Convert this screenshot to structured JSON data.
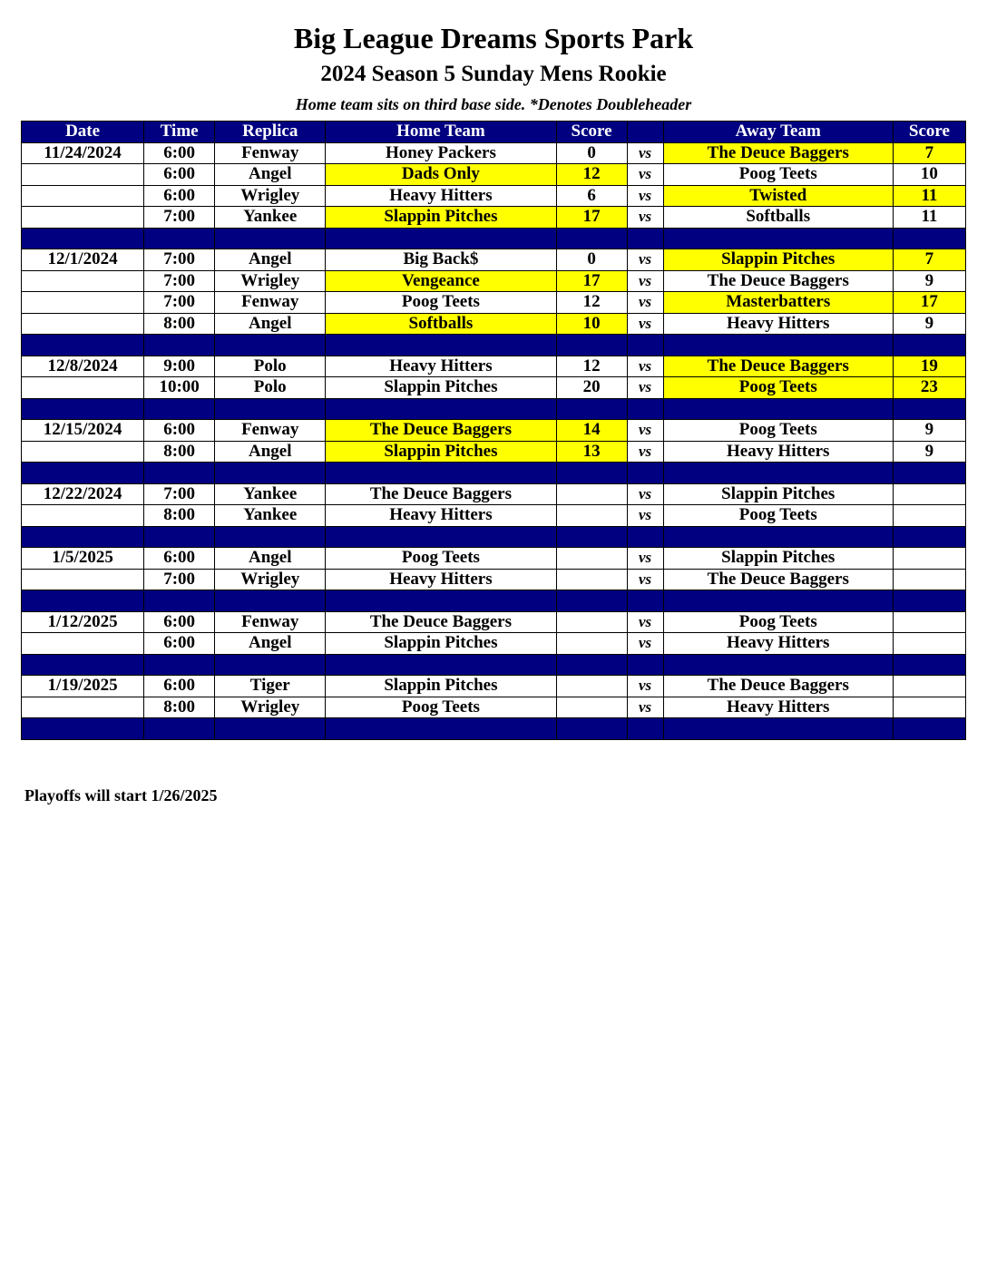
{
  "title": "Big League Dreams Sports Park",
  "subtitle": "2024 Season 5 Sunday Mens Rookie",
  "note": "Home team sits on third base side.  *Denotes Doubleheader",
  "colors": {
    "header_bg": "#000080",
    "winner_highlight": "#ffff00"
  },
  "headers": [
    "Date",
    "Time",
    "Replica",
    "Home Team",
    "Score",
    "",
    "Away Team",
    "Score"
  ],
  "rows": [
    {
      "date": "11/24/2024",
      "time": "6:00",
      "replica": "Fenway",
      "home": "Honey Packers",
      "home_score": "0",
      "vs": "vs",
      "away": "The Deuce Baggers",
      "away_score": "7",
      "winner": "away"
    },
    {
      "date": "",
      "time": "6:00",
      "replica": "Angel",
      "home": "Dads Only",
      "home_score": "12",
      "vs": "vs",
      "away": "Poog Teets",
      "away_score": "10",
      "winner": "home"
    },
    {
      "date": "",
      "time": "6:00",
      "replica": "Wrigley",
      "home": "Heavy Hitters",
      "home_score": "6",
      "vs": "vs",
      "away": "Twisted",
      "away_score": "11",
      "winner": "away"
    },
    {
      "date": "",
      "time": "7:00",
      "replica": "Yankee",
      "home": "Slappin Pitches",
      "home_score": "17",
      "vs": "vs",
      "away": "Softballs",
      "away_score": "11",
      "winner": "home"
    },
    {
      "separator": true
    },
    {
      "date": "12/1/2024",
      "time": "7:00",
      "replica": "Angel",
      "home": "Big Back$",
      "home_score": "0",
      "vs": "vs",
      "away": "Slappin Pitches",
      "away_score": "7",
      "winner": "away"
    },
    {
      "date": "",
      "time": "7:00",
      "replica": "Wrigley",
      "home": "Vengeance",
      "home_score": "17",
      "vs": "vs",
      "away": "The Deuce Baggers",
      "away_score": "9",
      "winner": "home"
    },
    {
      "date": "",
      "time": "7:00",
      "replica": "Fenway",
      "home": "Poog Teets",
      "home_score": "12",
      "vs": "vs",
      "away": "Masterbatters",
      "away_score": "17",
      "winner": "away"
    },
    {
      "date": "",
      "time": "8:00",
      "replica": "Angel",
      "home": "Softballs",
      "home_score": "10",
      "vs": "vs",
      "away": "Heavy Hitters",
      "away_score": "9",
      "winner": "home"
    },
    {
      "separator": true
    },
    {
      "date": "12/8/2024",
      "time": "9:00",
      "replica": "Polo",
      "home": "Heavy Hitters",
      "home_score": "12",
      "vs": "vs",
      "away": "The Deuce Baggers",
      "away_score": "19",
      "winner": "away"
    },
    {
      "date": "",
      "time": "10:00",
      "replica": "Polo",
      "home": "Slappin Pitches",
      "home_score": "20",
      "vs": "vs",
      "away": "Poog Teets",
      "away_score": "23",
      "winner": "away"
    },
    {
      "separator": true
    },
    {
      "date": "12/15/2024",
      "time": "6:00",
      "replica": "Fenway",
      "home": "The Deuce Baggers",
      "home_score": "14",
      "vs": "vs",
      "away": "Poog Teets",
      "away_score": "9",
      "winner": "home"
    },
    {
      "date": "",
      "time": "8:00",
      "replica": "Angel",
      "home": "Slappin Pitches",
      "home_score": "13",
      "vs": "vs",
      "away": "Heavy Hitters",
      "away_score": "9",
      "winner": "home"
    },
    {
      "separator": true
    },
    {
      "date": "12/22/2024",
      "time": "7:00",
      "replica": "Yankee",
      "home": "The Deuce Baggers",
      "home_score": "",
      "vs": "vs",
      "away": "Slappin Pitches",
      "away_score": "",
      "winner": null
    },
    {
      "date": "",
      "time": "8:00",
      "replica": "Yankee",
      "home": "Heavy Hitters",
      "home_score": "",
      "vs": "vs",
      "away": "Poog Teets",
      "away_score": "",
      "winner": null
    },
    {
      "separator": true
    },
    {
      "date": "1/5/2025",
      "time": "6:00",
      "replica": "Angel",
      "home": "Poog Teets",
      "home_score": "",
      "vs": "vs",
      "away": "Slappin Pitches",
      "away_score": "",
      "winner": null
    },
    {
      "date": "",
      "time": "7:00",
      "replica": "Wrigley",
      "home": "Heavy Hitters",
      "home_score": "",
      "vs": "vs",
      "away": "The Deuce Baggers",
      "away_score": "",
      "winner": null
    },
    {
      "separator": true
    },
    {
      "date": "1/12/2025",
      "time": "6:00",
      "replica": "Fenway",
      "home": "The Deuce Baggers",
      "home_score": "",
      "vs": "vs",
      "away": "Poog Teets",
      "away_score": "",
      "winner": null
    },
    {
      "date": "",
      "time": "6:00",
      "replica": "Angel",
      "home": "Slappin Pitches",
      "home_score": "",
      "vs": "vs",
      "away": "Heavy Hitters",
      "away_score": "",
      "winner": null
    },
    {
      "separator": true
    },
    {
      "date": "1/19/2025",
      "time": "6:00",
      "replica": "Tiger",
      "home": "Slappin Pitches",
      "home_score": "",
      "vs": "vs",
      "away": "The Deuce Baggers",
      "away_score": "",
      "winner": null
    },
    {
      "date": "",
      "time": "8:00",
      "replica": "Wrigley",
      "home": "Poog Teets",
      "home_score": "",
      "vs": "vs",
      "away": "Heavy Hitters",
      "away_score": "",
      "winner": null
    },
    {
      "separator": true
    }
  ],
  "footer": "Playoffs will start 1/26/2025"
}
